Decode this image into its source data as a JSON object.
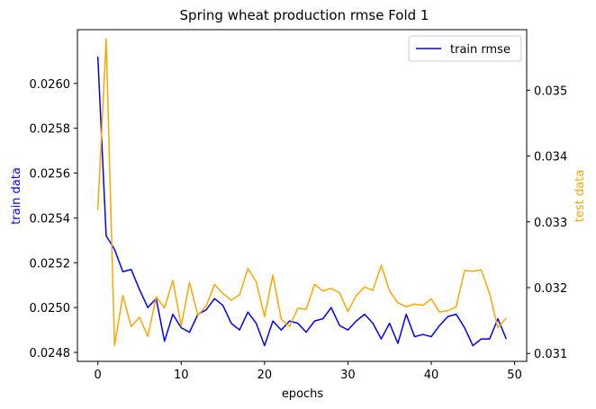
{
  "chart_data": {
    "type": "line",
    "title": "Spring wheat production rmse Fold 1",
    "xlabel": "epochs",
    "ylabel_left": "train data",
    "ylabel_right": "test data",
    "xlim": [
      -2.45,
      51.45
    ],
    "ylim_left": [
      0.02476,
      0.02624
    ],
    "ylim_right": [
      0.03088,
      0.03592
    ],
    "x_ticks": [
      0,
      10,
      20,
      30,
      40,
      50
    ],
    "y_left_ticks": [
      "0.0248",
      "0.0250",
      "0.0252",
      "0.0254",
      "0.0256",
      "0.0258",
      "0.0260"
    ],
    "y_left_tick_values": [
      0.0248,
      0.025,
      0.0252,
      0.0254,
      0.0256,
      0.0258,
      0.026
    ],
    "y_right_ticks": [
      "0.031",
      "0.032",
      "0.033",
      "0.034",
      "0.035"
    ],
    "y_right_tick_values": [
      0.031,
      0.032,
      0.033,
      0.034,
      0.035
    ],
    "legend": {
      "position": "top-right",
      "entries": [
        "train rmse"
      ]
    },
    "colors": {
      "train": "#0000ff",
      "test": "#ffa500",
      "left_label": "#0000ff",
      "right_label": "#ffa500"
    },
    "x": [
      0,
      1,
      2,
      3,
      4,
      5,
      6,
      7,
      8,
      9,
      10,
      11,
      12,
      13,
      14,
      15,
      16,
      17,
      18,
      19,
      20,
      21,
      22,
      23,
      24,
      25,
      26,
      27,
      28,
      29,
      30,
      31,
      32,
      33,
      34,
      35,
      36,
      37,
      38,
      39,
      40,
      41,
      42,
      43,
      44,
      45,
      46,
      47,
      48,
      49
    ],
    "series": [
      {
        "name": "train rmse",
        "axis": "left",
        "values": [
          0.02612,
          0.02532,
          0.02526,
          0.02516,
          0.02517,
          0.02508,
          0.025,
          0.02504,
          0.02485,
          0.02497,
          0.02491,
          0.02489,
          0.02497,
          0.02499,
          0.02504,
          0.02501,
          0.02493,
          0.0249,
          0.02498,
          0.02493,
          0.02483,
          0.02494,
          0.0249,
          0.02494,
          0.02493,
          0.02489,
          0.02494,
          0.02495,
          0.025,
          0.02492,
          0.0249,
          0.02494,
          0.02497,
          0.02493,
          0.02486,
          0.02493,
          0.02484,
          0.02497,
          0.02487,
          0.02488,
          0.02487,
          0.02492,
          0.02496,
          0.02497,
          0.02491,
          0.02483,
          0.02486,
          0.02486,
          0.02495,
          0.02486
        ]
      },
      {
        "axis": "right",
        "values": [
          0.03318,
          0.03578,
          0.03112,
          0.03188,
          0.03141,
          0.03155,
          0.03126,
          0.03186,
          0.03169,
          0.03211,
          0.03142,
          0.03208,
          0.03158,
          0.03172,
          0.03205,
          0.03191,
          0.03181,
          0.03189,
          0.03229,
          0.03209,
          0.03156,
          0.03219,
          0.03152,
          0.03141,
          0.03169,
          0.03167,
          0.03205,
          0.03195,
          0.03199,
          0.03192,
          0.03164,
          0.03188,
          0.03201,
          0.03196,
          0.03234,
          0.03195,
          0.03177,
          0.03171,
          0.03175,
          0.03173,
          0.03183,
          0.03163,
          0.03165,
          0.03171,
          0.03226,
          0.03225,
          0.03227,
          0.03191,
          0.03139,
          0.03154
        ]
      }
    ]
  }
}
